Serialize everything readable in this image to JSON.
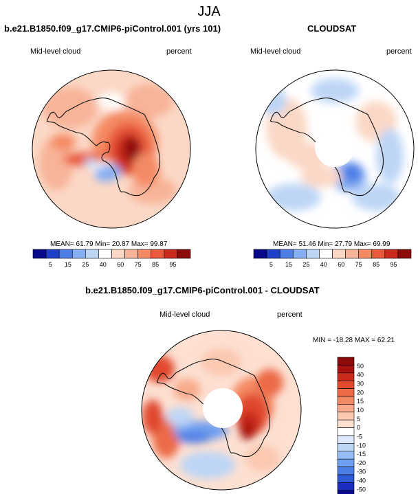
{
  "page": {
    "title": "JJA"
  },
  "panels": [
    {
      "id": "model",
      "title": "b.e21.B1850.f09_g17.CMIP6-piControl.001 (yrs 101)",
      "left_label": "Mid-level cloud",
      "right_label": "percent",
      "stats": "MEAN= 61.79  Min= 20.87  Max= 99.87",
      "has_pole_hole": false
    },
    {
      "id": "obs",
      "title": "CLOUDSAT",
      "left_label": "Mid-level cloud",
      "right_label": "percent",
      "stats": "MEAN= 51.46  Min= 27.79  Max= 69.99",
      "has_pole_hole": true
    },
    {
      "id": "diff",
      "title": "b.e21.B1850.f09_g17.CMIP6-piControl.001 - CLOUDSAT",
      "left_label": "Mid-level cloud",
      "right_label": "percent",
      "stats": "MIN = -18.28 MAX =  62.21",
      "has_pole_hole": true
    }
  ],
  "colors": {
    "abs": [
      "#08088a",
      "#1e3fc8",
      "#4d7ee6",
      "#86aef2",
      "#bed6f6",
      "#ffffff",
      "#fbd8c6",
      "#f8b498",
      "#f48a64",
      "#e8583a",
      "#c92a1c",
      "#8c0a0a"
    ],
    "diff": [
      "#08088a",
      "#1a2fc0",
      "#2e5ad8",
      "#4d7ee6",
      "#709ff0",
      "#96bdf5",
      "#bed6f6",
      "#dde9fb",
      "#ffffff",
      "#fde0d2",
      "#fbc8b0",
      "#f8ab8c",
      "#f48a64",
      "#ec6a46",
      "#e04a2e",
      "#c92a1c",
      "#a8130f",
      "#8c0a0a"
    ],
    "coast": "#111111",
    "hole": "#ffffff"
  },
  "chart_data": [
    {
      "type": "heatmap",
      "title": "b.e21.B1850.f09_g17.CMIP6-piControl.001 (yrs 101)",
      "projection": "south-polar-stereographic",
      "variable": "Mid-level cloud",
      "units": "percent",
      "mean": 61.79,
      "min": 20.87,
      "max": 99.87,
      "colorbar_levels": [
        "5",
        "15",
        "25",
        "40",
        "60",
        "75",
        "85",
        "95"
      ],
      "colorbar_orientation": "horizontal"
    },
    {
      "type": "heatmap",
      "title": "CLOUDSAT",
      "projection": "south-polar-stereographic",
      "variable": "Mid-level cloud",
      "units": "percent",
      "mean": 51.46,
      "min": 27.79,
      "max": 69.99,
      "colorbar_levels": [
        "5",
        "15",
        "25",
        "40",
        "60",
        "75",
        "85",
        "95"
      ],
      "colorbar_orientation": "horizontal"
    },
    {
      "type": "heatmap",
      "title": "b.e21.B1850.f09_g17.CMIP6-piControl.001 - CLOUDSAT",
      "projection": "south-polar-stereographic",
      "variable": "Mid-level cloud",
      "units": "percent",
      "min": -18.28,
      "max": 62.21,
      "colorbar_levels": [
        "50",
        "40",
        "30",
        "20",
        "15",
        "10",
        "5",
        "0",
        "-5",
        "-10",
        "-15",
        "-20",
        "-30",
        "-40",
        "-50"
      ],
      "colorbar_orientation": "vertical"
    }
  ]
}
